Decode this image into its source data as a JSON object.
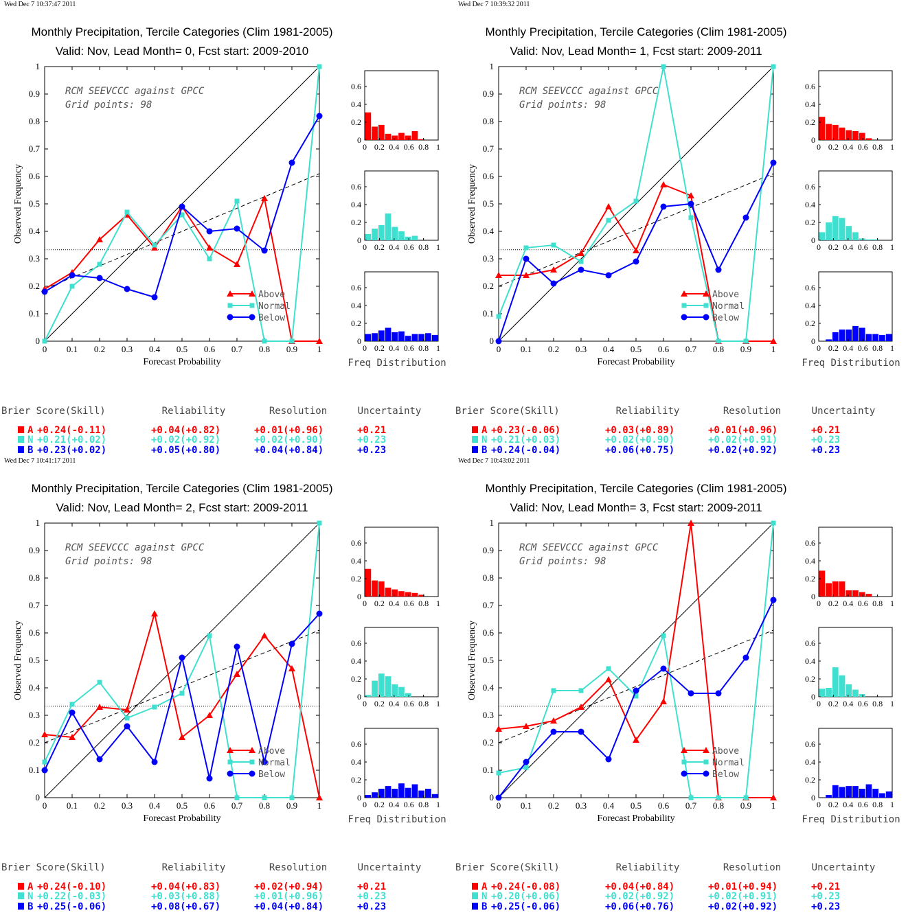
{
  "colors": {
    "A": "#ff0000",
    "N": "#40e0d0",
    "B": "#0000ff"
  },
  "legend": {
    "A": "Above",
    "N": "Normal",
    "B": "Below"
  },
  "annotation": {
    "line1": "RCM SEEVCCC against GPCC",
    "line2": "Grid points:   98"
  },
  "labels": {
    "xlabel": "Forecast Probability",
    "ylabel": "Observed Frequency",
    "hist_label": "Freq Distribution",
    "score_header": {
      "brier": "Brier Score(Skill)",
      "reliability": "Reliability",
      "resolution": "Resolution",
      "uncertainty": "Uncertainty"
    }
  },
  "ticks": {
    "x": [
      "0",
      "0.1",
      "0.2",
      "0.3",
      "0.4",
      "0.5",
      "0.6",
      "0.7",
      "0.8",
      "0.9",
      "1"
    ],
    "y": [
      "0",
      "0.1",
      "0.2",
      "0.3",
      "0.4",
      "0.5",
      "0.6",
      "0.7",
      "0.8",
      "0.9",
      "1"
    ],
    "hx": [
      "0",
      "0.2",
      "0.4",
      "0.6",
      "0.8",
      "1"
    ],
    "hy": [
      "0",
      "0.2",
      "0.4",
      "0.6"
    ]
  },
  "chart_data": [
    {
      "type": "line",
      "timestamp": "Wed Dec  7 10:37:47 2011",
      "title": "Monthly Precipitation, Tercile Categories (Clim 1981-2005)",
      "subtitle": "Valid: Nov, Lead Month= 0, Fcst start: 2009-2010",
      "x": [
        0,
        0.1,
        0.2,
        0.3,
        0.4,
        0.5,
        0.6,
        0.7,
        0.8,
        0.9,
        1.0
      ],
      "xlim": [
        0,
        1
      ],
      "ylim": [
        0,
        1
      ],
      "series": [
        {
          "name": "Above",
          "values": [
            0.19,
            0.25,
            0.37,
            0.46,
            0.34,
            0.49,
            0.34,
            0.28,
            0.52,
            0.0,
            0.0
          ]
        },
        {
          "name": "Normal",
          "values": [
            0.0,
            0.2,
            0.28,
            0.47,
            0.35,
            0.46,
            0.3,
            0.51,
            0.0,
            0.0,
            1.0
          ]
        },
        {
          "name": "Below",
          "values": [
            0.18,
            0.24,
            0.23,
            0.19,
            0.16,
            0.49,
            0.4,
            0.41,
            0.33,
            0.65,
            0.82
          ]
        }
      ],
      "regression_line": [
        0.19,
        0.61
      ],
      "climatology": 0.333,
      "histograms": {
        "Above": [
          0.31,
          0.15,
          0.17,
          0.07,
          0.05,
          0.08,
          0.05,
          0.1,
          0.01,
          0,
          0
        ],
        "Normal": [
          0.07,
          0.13,
          0.17,
          0.3,
          0.15,
          0.1,
          0.04,
          0.05,
          0,
          0,
          0
        ],
        "Below": [
          0.08,
          0.09,
          0.12,
          0.15,
          0.1,
          0.11,
          0.06,
          0.08,
          0.08,
          0.09,
          0.07
        ]
      },
      "scores": {
        "A": {
          "brier": "+0.24(-0.11)",
          "rel": "+0.04(+0.82)",
          "res": "+0.01(+0.96)",
          "unc": "+0.21"
        },
        "N": {
          "brier": "+0.21(+0.02)",
          "rel": "+0.02(+0.92)",
          "res": "+0.02(+0.90)",
          "unc": "+0.23"
        },
        "B": {
          "brier": "+0.23(+0.02)",
          "rel": "+0.05(+0.80)",
          "res": "+0.04(+0.84)",
          "unc": "+0.23"
        }
      }
    },
    {
      "type": "line",
      "timestamp": "Wed Dec  7 10:39:32 2011",
      "title": "Monthly Precipitation, Tercile Categories (Clim 1981-2005)",
      "subtitle": "Valid: Nov, Lead Month= 1, Fcst start: 2009-2011",
      "x": [
        0,
        0.1,
        0.2,
        0.3,
        0.4,
        0.5,
        0.6,
        0.7,
        0.8,
        0.9,
        1.0
      ],
      "xlim": [
        0,
        1
      ],
      "ylim": [
        0,
        1
      ],
      "series": [
        {
          "name": "Above",
          "values": [
            0.24,
            0.24,
            0.26,
            0.32,
            0.49,
            0.33,
            0.57,
            0.53,
            0.0,
            0.0,
            0.0
          ]
        },
        {
          "name": "Normal",
          "values": [
            0.09,
            0.34,
            0.35,
            0.29,
            0.44,
            0.51,
            1.0,
            0.45,
            0.0,
            0.0,
            1.0
          ]
        },
        {
          "name": "Below",
          "values": [
            0.0,
            0.3,
            0.21,
            0.26,
            0.24,
            0.29,
            0.49,
            0.5,
            0.26,
            0.45,
            0.65
          ]
        }
      ],
      "regression_line": [
        0.2,
        0.61
      ],
      "climatology": 0.333,
      "histograms": {
        "Above": [
          0.26,
          0.18,
          0.17,
          0.14,
          0.11,
          0.1,
          0.08,
          0.02,
          0,
          0,
          0
        ],
        "Normal": [
          0.09,
          0.2,
          0.27,
          0.25,
          0.16,
          0.09,
          0.02,
          0.01,
          0.01,
          0,
          0
        ],
        "Below": [
          0.0,
          0.02,
          0.1,
          0.13,
          0.13,
          0.17,
          0.15,
          0.08,
          0.08,
          0.07,
          0.08
        ]
      },
      "scores": {
        "A": {
          "brier": "+0.23(-0.06)",
          "rel": "+0.03(+0.89)",
          "res": "+0.01(+0.96)",
          "unc": "+0.21"
        },
        "N": {
          "brier": "+0.21(+0.03)",
          "rel": "+0.02(+0.90)",
          "res": "+0.02(+0.91)",
          "unc": "+0.23"
        },
        "B": {
          "brier": "+0.24(-0.04)",
          "rel": "+0.06(+0.75)",
          "res": "+0.02(+0.92)",
          "unc": "+0.23"
        }
      }
    },
    {
      "type": "line",
      "timestamp": "Wed Dec  7 10:41:17 2011",
      "title": "Monthly Precipitation, Tercile Categories (Clim 1981-2005)",
      "subtitle": "Valid: Nov, Lead Month= 2, Fcst start: 2009-2011",
      "x": [
        0,
        0.1,
        0.2,
        0.3,
        0.4,
        0.5,
        0.6,
        0.7,
        0.8,
        0.9,
        1.0
      ],
      "xlim": [
        0,
        1
      ],
      "ylim": [
        0,
        1
      ],
      "series": [
        {
          "name": "Above",
          "values": [
            0.23,
            0.22,
            0.33,
            0.32,
            0.67,
            0.22,
            0.3,
            0.45,
            0.59,
            0.47,
            0.0
          ]
        },
        {
          "name": "Normal",
          "values": [
            0.13,
            0.34,
            0.42,
            0.29,
            0.33,
            0.38,
            0.59,
            0.0,
            0.0,
            0.0,
            1.0
          ]
        },
        {
          "name": "Below",
          "values": [
            0.1,
            0.31,
            0.14,
            0.26,
            0.13,
            0.51,
            0.07,
            0.55,
            0.13,
            0.56,
            0.67
          ]
        }
      ],
      "regression_line": [
        0.2,
        0.61
      ],
      "climatology": 0.333,
      "histograms": {
        "Above": [
          0.31,
          0.18,
          0.17,
          0.1,
          0.08,
          0.06,
          0.05,
          0.04,
          0.02,
          0,
          0
        ],
        "Normal": [
          0.02,
          0.18,
          0.26,
          0.23,
          0.14,
          0.11,
          0.04,
          0,
          0,
          0,
          0
        ],
        "Below": [
          0.03,
          0.06,
          0.1,
          0.13,
          0.1,
          0.16,
          0.11,
          0.15,
          0.08,
          0.1,
          0.04
        ]
      },
      "scores": {
        "A": {
          "brier": "+0.24(-0.10)",
          "rel": "+0.04(+0.83)",
          "res": "+0.02(+0.94)",
          "unc": "+0.21"
        },
        "N": {
          "brier": "+0.22(-0.03)",
          "rel": "+0.03(+0.88)",
          "res": "+0.01(+0.96)",
          "unc": "+0.23"
        },
        "B": {
          "brier": "+0.25(-0.06)",
          "rel": "+0.08(+0.67)",
          "res": "+0.04(+0.84)",
          "unc": "+0.23"
        }
      }
    },
    {
      "type": "line",
      "timestamp": "Wed Dec  7 10:43:02 2011",
      "title": "Monthly Precipitation, Tercile Categories (Clim 1981-2005)",
      "subtitle": "Valid: Nov, Lead Month= 3, Fcst start: 2009-2011",
      "x": [
        0,
        0.1,
        0.2,
        0.3,
        0.4,
        0.5,
        0.6,
        0.7,
        0.8,
        0.9,
        1.0
      ],
      "xlim": [
        0,
        1
      ],
      "ylim": [
        0,
        1
      ],
      "series": [
        {
          "name": "Above",
          "values": [
            0.25,
            0.26,
            0.28,
            0.33,
            0.43,
            0.21,
            0.35,
            1.0,
            0.0,
            0.0,
            0.0
          ]
        },
        {
          "name": "Normal",
          "values": [
            0.09,
            0.11,
            0.39,
            0.39,
            0.47,
            0.37,
            0.59,
            0.0,
            0.0,
            0.0,
            1.0
          ]
        },
        {
          "name": "Below",
          "values": [
            0.0,
            0.13,
            0.24,
            0.24,
            0.14,
            0.39,
            0.47,
            0.38,
            0.38,
            0.51,
            0.72
          ]
        }
      ],
      "regression_line": [
        0.2,
        0.61
      ],
      "climatology": 0.333,
      "histograms": {
        "Above": [
          0.29,
          0.15,
          0.17,
          0.17,
          0.07,
          0.07,
          0.05,
          0.03,
          0,
          0,
          0
        ],
        "Normal": [
          0.09,
          0.1,
          0.33,
          0.24,
          0.14,
          0.08,
          0.03,
          0,
          0,
          0,
          0
        ],
        "Below": [
          0.0,
          0.03,
          0.14,
          0.12,
          0.13,
          0.13,
          0.1,
          0.15,
          0.1,
          0.05,
          0.07
        ]
      },
      "scores": {
        "A": {
          "brier": "+0.24(-0.08)",
          "rel": "+0.04(+0.84)",
          "res": "+0.01(+0.94)",
          "unc": "+0.21"
        },
        "N": {
          "brier": "+0.20(+0.06)",
          "rel": "+0.02(+0.92)",
          "res": "+0.02(+0.91)",
          "unc": "+0.23"
        },
        "B": {
          "brier": "+0.25(-0.06)",
          "rel": "+0.06(+0.76)",
          "res": "+0.02(+0.92)",
          "unc": "+0.23"
        }
      }
    }
  ]
}
